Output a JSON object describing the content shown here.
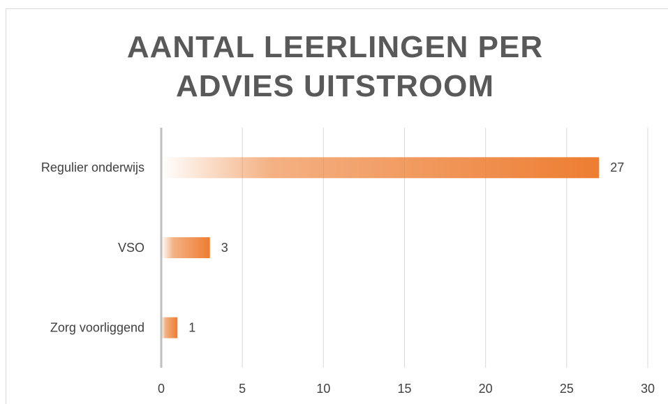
{
  "chart_data": {
    "type": "bar",
    "orientation": "horizontal",
    "title": "AANTAL LEERLINGEN PER ADVIES UITSTROOM",
    "categories": [
      "Regulier onderwijs",
      "VSO",
      "Zorg voorliggend"
    ],
    "values": [
      27,
      3,
      1
    ],
    "color": "#ed7d31",
    "xlim": [
      0,
      30
    ],
    "xticks": [
      0,
      5,
      10,
      15,
      20,
      25,
      30
    ],
    "grid": true
  }
}
